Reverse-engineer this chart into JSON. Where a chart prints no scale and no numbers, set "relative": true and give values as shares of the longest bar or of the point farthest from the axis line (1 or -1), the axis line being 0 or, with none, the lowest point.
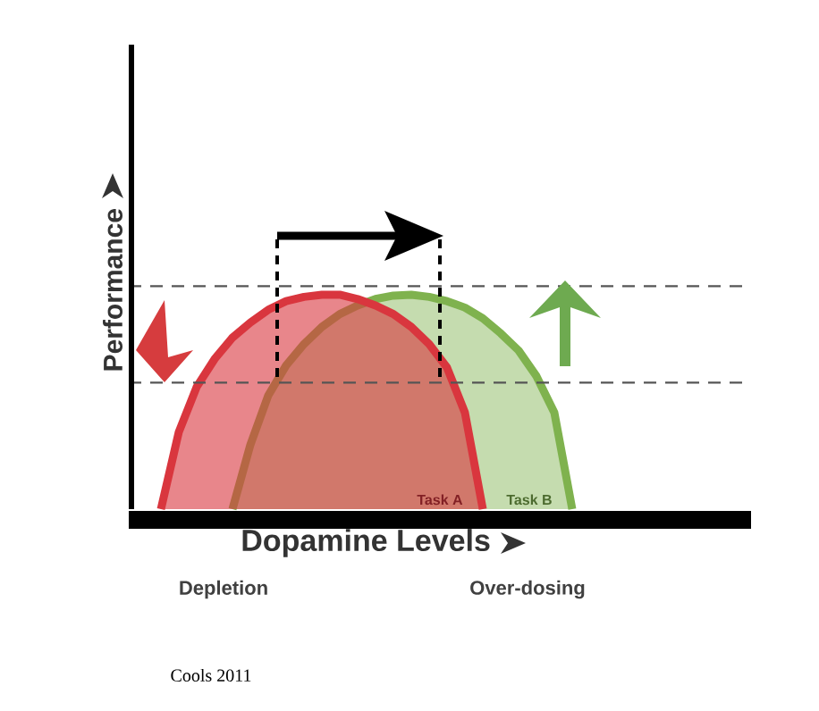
{
  "chart_data": {
    "type": "area",
    "relative": true,
    "xlabel": "Dopamine Levels",
    "ylabel": "Performance",
    "categories": [
      null,
      null,
      null,
      null,
      null,
      null,
      null,
      null,
      null,
      null,
      null,
      null,
      null,
      null,
      null,
      null,
      null,
      null,
      null,
      null,
      null,
      null,
      null,
      null
    ],
    "series": [
      {
        "name": "Task B",
        "color": "#7fb24e",
        "values": [
          null,
          null,
          null,
          null,
          0,
          0.3,
          0.53,
          0.67,
          0.77,
          0.85,
          0.91,
          0.95,
          0.98,
          0.996,
          1,
          0.99,
          0.97,
          0.94,
          0.89,
          0.82,
          0.74,
          0.62,
          0.45,
          0
        ]
      },
      {
        "name": "Task A",
        "color": "#d9363e",
        "values": [
          0,
          0.36,
          0.57,
          0.7,
          0.8,
          0.87,
          0.93,
          0.97,
          0.99,
          1,
          1,
          0.98,
          0.95,
          0.91,
          0.85,
          0.77,
          0.66,
          0.45,
          0,
          null,
          null,
          null,
          null,
          null
        ]
      }
    ],
    "ref_lines": [
      {
        "axis": "y",
        "value": 1.04,
        "line_style": "dashed",
        "color": "#555555"
      },
      {
        "axis": "y",
        "value": 0.59,
        "line_style": "dashed",
        "color": "#555555"
      }
    ],
    "annotations": [
      "Depletion",
      "Over-dosing",
      "Cools 2011"
    ]
  }
}
